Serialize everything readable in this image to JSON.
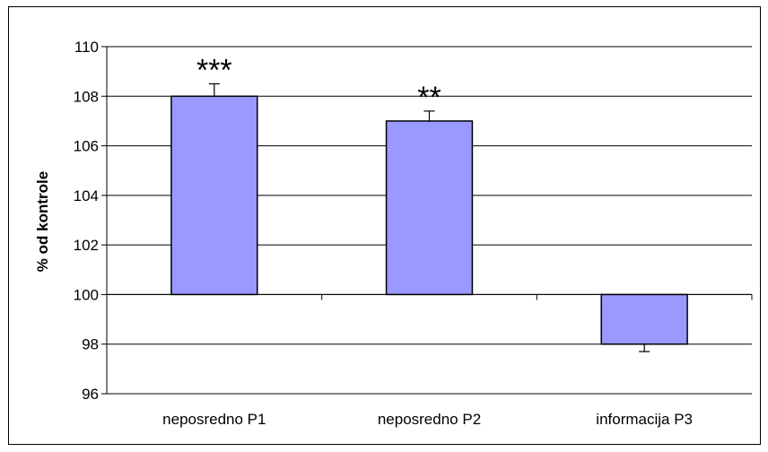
{
  "chart_data": {
    "type": "bar",
    "title": "",
    "xlabel": "",
    "ylabel": "% od kontrole",
    "ylim": [
      96,
      110
    ],
    "yticks": [
      96,
      98,
      100,
      102,
      104,
      106,
      108,
      110
    ],
    "baseline": 100,
    "grid": true,
    "legend": "none",
    "categories": [
      "neposredno P1",
      "neposredno P2",
      "informacija P3"
    ],
    "values": [
      108.0,
      107.0,
      98.0
    ],
    "error_bars": [
      0.5,
      0.4,
      0.3
    ],
    "annotations": [
      "***",
      "**",
      ""
    ],
    "colors": {
      "bar_fill": "#9999ff",
      "bar_stroke": "#000000",
      "grid": "#000000"
    }
  }
}
